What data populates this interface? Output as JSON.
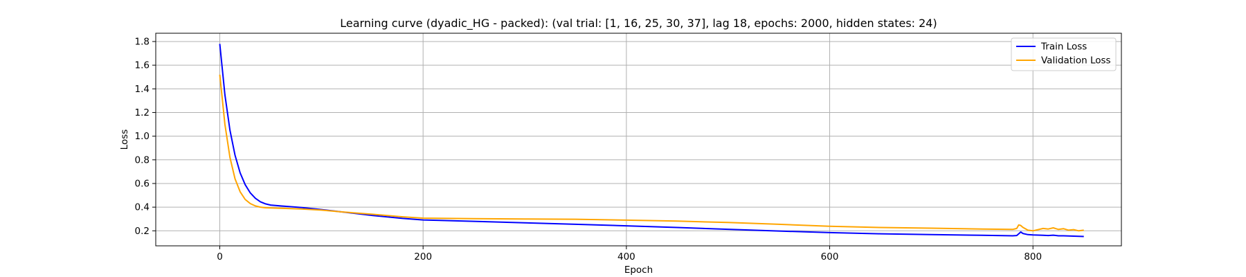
{
  "chart_data": {
    "type": "line",
    "title": "Learning curve (dyadic_HG - packed): (val trial: [1, 16, 25, 30, 37], lag 18, epochs: 2000, hidden states: 24)",
    "xlabel": "Epoch",
    "ylabel": "Loss",
    "xlim": [
      -63,
      887
    ],
    "ylim": [
      0.073,
      1.87
    ],
    "xticks": [
      0,
      200,
      400,
      600,
      800
    ],
    "yticks": [
      0.2,
      0.4,
      0.6,
      0.8,
      1.0,
      1.2,
      1.4,
      1.6,
      1.8
    ],
    "xtick_labels": [
      "0",
      "200",
      "400",
      "600",
      "800"
    ],
    "ytick_labels": [
      "0.2",
      "0.4",
      "0.6",
      "0.8",
      "1.0",
      "1.2",
      "1.4",
      "1.6",
      "1.8"
    ],
    "grid": true,
    "legend_position": "top-right",
    "series": [
      {
        "name": "Train Loss",
        "color": "#0000ff",
        "x": [
          0,
          5,
          10,
          15,
          20,
          25,
          30,
          35,
          40,
          45,
          50,
          60,
          80,
          100,
          120,
          150,
          180,
          200,
          250,
          300,
          350,
          400,
          450,
          500,
          550,
          600,
          650,
          700,
          750,
          780,
          784,
          786,
          788,
          790,
          795,
          800,
          810,
          815,
          820,
          825,
          830,
          840,
          850
        ],
        "y": [
          1.78,
          1.35,
          1.05,
          0.84,
          0.69,
          0.59,
          0.52,
          0.475,
          0.445,
          0.428,
          0.418,
          0.41,
          0.397,
          0.38,
          0.36,
          0.33,
          0.305,
          0.292,
          0.28,
          0.268,
          0.255,
          0.242,
          0.228,
          0.213,
          0.198,
          0.185,
          0.175,
          0.168,
          0.162,
          0.158,
          0.16,
          0.175,
          0.19,
          0.178,
          0.168,
          0.165,
          0.162,
          0.16,
          0.163,
          0.158,
          0.158,
          0.155,
          0.152
        ]
      },
      {
        "name": "Validation Loss",
        "color": "#ffa500",
        "x": [
          0,
          5,
          10,
          15,
          20,
          25,
          30,
          35,
          40,
          45,
          50,
          60,
          80,
          100,
          120,
          150,
          180,
          200,
          250,
          300,
          350,
          400,
          450,
          500,
          550,
          600,
          650,
          700,
          750,
          780,
          784,
          786,
          788,
          790,
          795,
          800,
          805,
          810,
          815,
          820,
          825,
          830,
          835,
          840,
          845,
          850
        ],
        "y": [
          1.52,
          1.1,
          0.82,
          0.64,
          0.53,
          0.465,
          0.43,
          0.41,
          0.4,
          0.395,
          0.393,
          0.39,
          0.385,
          0.375,
          0.36,
          0.34,
          0.318,
          0.307,
          0.303,
          0.3,
          0.298,
          0.29,
          0.282,
          0.27,
          0.255,
          0.238,
          0.228,
          0.222,
          0.215,
          0.212,
          0.22,
          0.25,
          0.245,
          0.23,
          0.205,
          0.2,
          0.21,
          0.22,
          0.215,
          0.225,
          0.212,
          0.218,
          0.205,
          0.21,
          0.2,
          0.205
        ]
      }
    ]
  }
}
